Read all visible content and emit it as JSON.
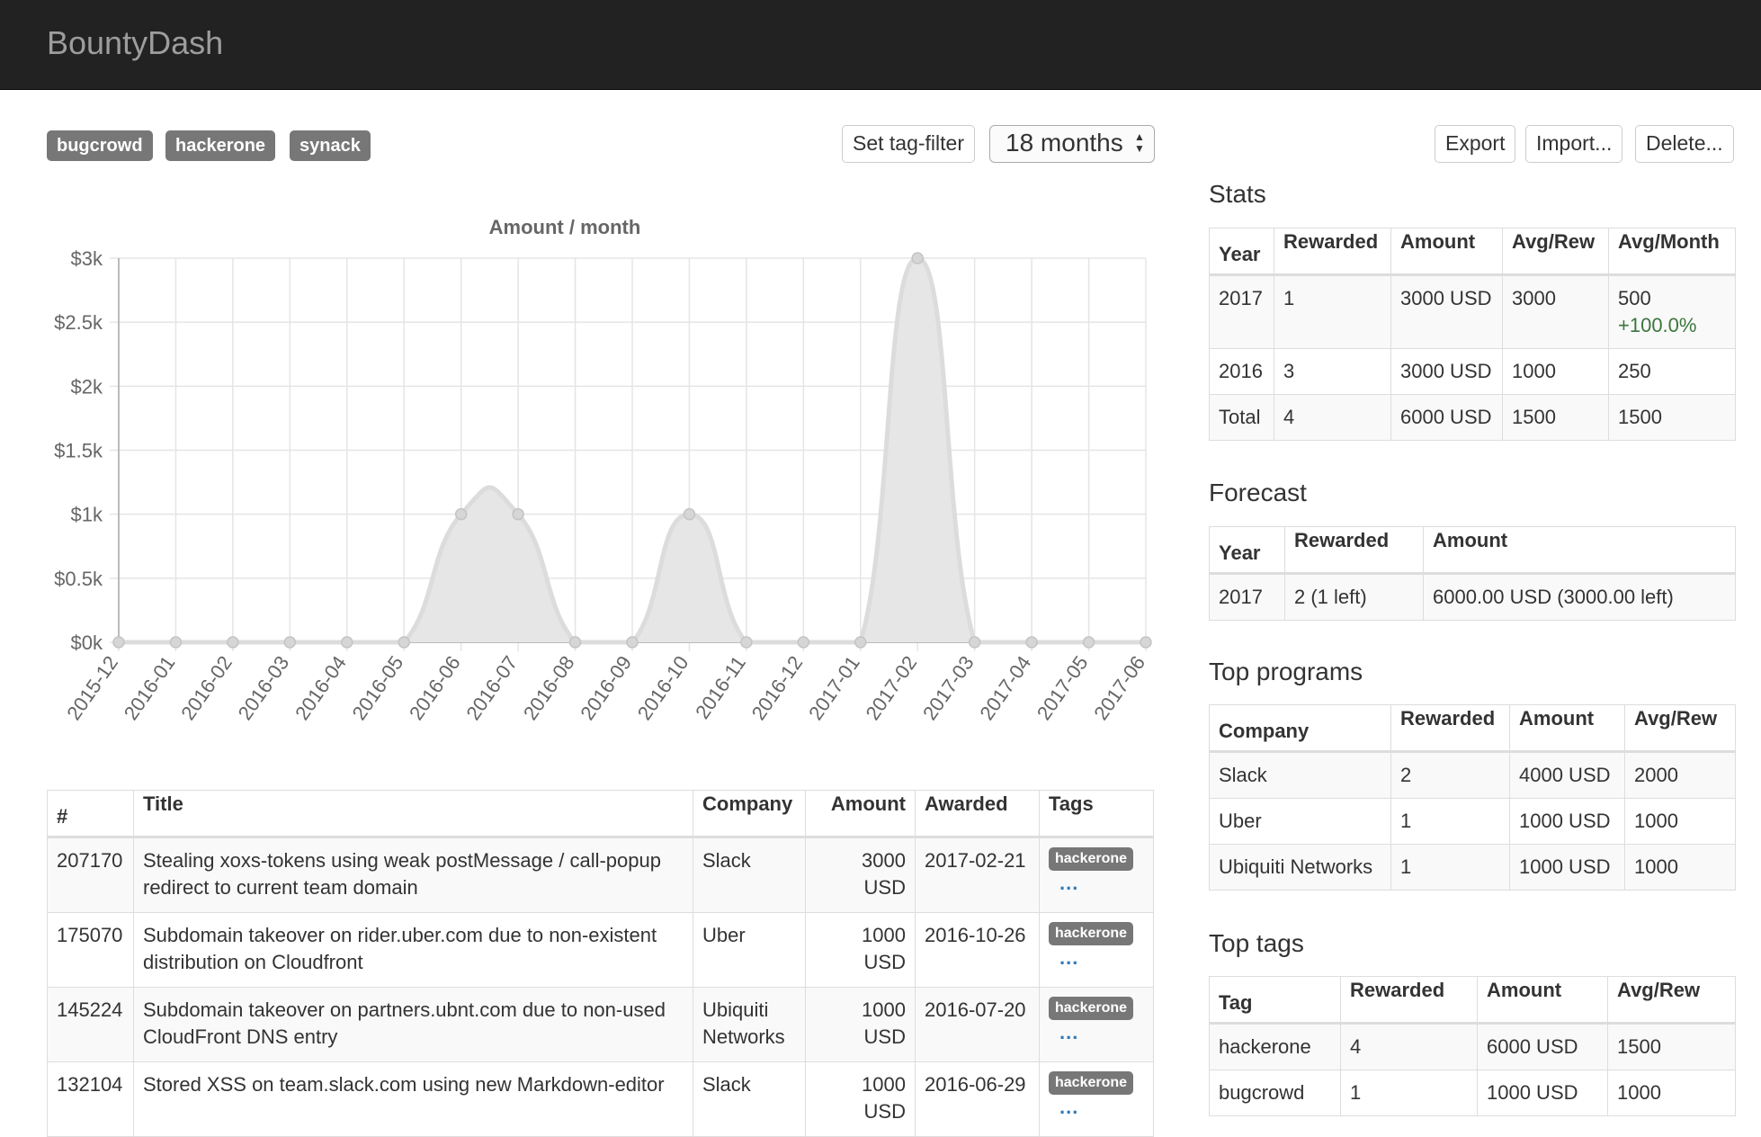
{
  "app": {
    "brand": "BountyDash"
  },
  "filters": {
    "tags": [
      "bugcrowd",
      "hackerone",
      "synack"
    ],
    "set_tag_filter_label": "Set tag-filter",
    "period_selected": "18 months"
  },
  "actions": {
    "export": "Export",
    "import": "Import...",
    "delete": "Delete..."
  },
  "chart_data": {
    "type": "area",
    "title": "Amount / month",
    "categories": [
      "2015-12",
      "2016-01",
      "2016-02",
      "2016-03",
      "2016-04",
      "2016-05",
      "2016-06",
      "2016-07",
      "2016-08",
      "2016-09",
      "2016-10",
      "2016-11",
      "2016-12",
      "2017-01",
      "2017-02",
      "2017-03",
      "2017-04",
      "2017-05",
      "2017-06"
    ],
    "values": [
      0,
      0,
      0,
      0,
      0,
      0,
      1000,
      1000,
      0,
      0,
      1000,
      0,
      0,
      0,
      3000,
      0,
      0,
      0,
      0
    ],
    "ylim": [
      0,
      3000
    ],
    "yticks": [
      0,
      500,
      1000,
      1500,
      2000,
      2500,
      3000
    ],
    "ytick_labels": [
      "$0k",
      "$0.5k",
      "$1k",
      "$1.5k",
      "$2k",
      "$2.5k",
      "$3k"
    ],
    "grid": true,
    "fill_color": "#e6e6e6",
    "line_color": "#dcdcdc"
  },
  "reports": {
    "headers": [
      "#",
      "Title",
      "Company",
      "Amount",
      "Awarded",
      "Tags"
    ],
    "rows": [
      {
        "id": "207170",
        "title": "Stealing xoxs-tokens using weak postMessage / call-popup redirect to current team domain",
        "company": "Slack",
        "amount": "3000 USD",
        "awarded": "2017-02-21",
        "tag": "hackerone",
        "more": "..."
      },
      {
        "id": "175070",
        "title": "Subdomain takeover on rider.uber.com due to non-existent distribution on Cloudfront",
        "company": "Uber",
        "amount": "1000 USD",
        "awarded": "2016-10-26",
        "tag": "hackerone",
        "more": "..."
      },
      {
        "id": "145224",
        "title": "Subdomain takeover on partners.ubnt.com due to non-used CloudFront DNS entry",
        "company": "Ubiquiti Networks",
        "amount": "1000 USD",
        "awarded": "2016-07-20",
        "tag": "hackerone",
        "more": "..."
      },
      {
        "id": "132104",
        "title": "Stored XSS on team.slack.com using new Markdown-editor",
        "company": "Slack",
        "amount": "1000 USD",
        "awarded": "2016-06-29",
        "tag": "hackerone",
        "more": "..."
      }
    ]
  },
  "stats": {
    "heading": "Stats",
    "headers": [
      "Year",
      "Rewarded",
      "Amount",
      "Avg/Rew",
      "Avg/Month"
    ],
    "rows": [
      {
        "year": "2017",
        "rewarded": "1",
        "amount": "3000 USD",
        "avg_rew": "3000",
        "avg_month": "500",
        "change": "+100.0%"
      },
      {
        "year": "2016",
        "rewarded": "3",
        "amount": "3000 USD",
        "avg_rew": "1000",
        "avg_month": "250"
      },
      {
        "year": "Total",
        "rewarded": "4",
        "amount": "6000 USD",
        "avg_rew": "1500",
        "avg_month": "1500"
      }
    ]
  },
  "forecast": {
    "heading": "Forecast",
    "headers": [
      "Year",
      "Rewarded",
      "Amount"
    ],
    "rows": [
      {
        "year": "2017",
        "rewarded": "2 (1 left)",
        "amount": "6000.00 USD (3000.00 left)"
      }
    ]
  },
  "top_programs": {
    "heading": "Top programs",
    "headers": [
      "Company",
      "Rewarded",
      "Amount",
      "Avg/Rew"
    ],
    "rows": [
      {
        "company": "Slack",
        "rewarded": "2",
        "amount": "4000 USD",
        "avg_rew": "2000"
      },
      {
        "company": "Uber",
        "rewarded": "1",
        "amount": "1000 USD",
        "avg_rew": "1000"
      },
      {
        "company": "Ubiquiti Networks",
        "rewarded": "1",
        "amount": "1000 USD",
        "avg_rew": "1000"
      }
    ]
  },
  "top_tags": {
    "heading": "Top tags",
    "headers": [
      "Tag",
      "Rewarded",
      "Amount",
      "Avg/Rew"
    ],
    "rows": [
      {
        "tag": "hackerone",
        "rewarded": "4",
        "amount": "6000 USD",
        "avg_rew": "1500"
      },
      {
        "tag": "bugcrowd",
        "rewarded": "1",
        "amount": "1000 USD",
        "avg_rew": "1000"
      }
    ]
  }
}
